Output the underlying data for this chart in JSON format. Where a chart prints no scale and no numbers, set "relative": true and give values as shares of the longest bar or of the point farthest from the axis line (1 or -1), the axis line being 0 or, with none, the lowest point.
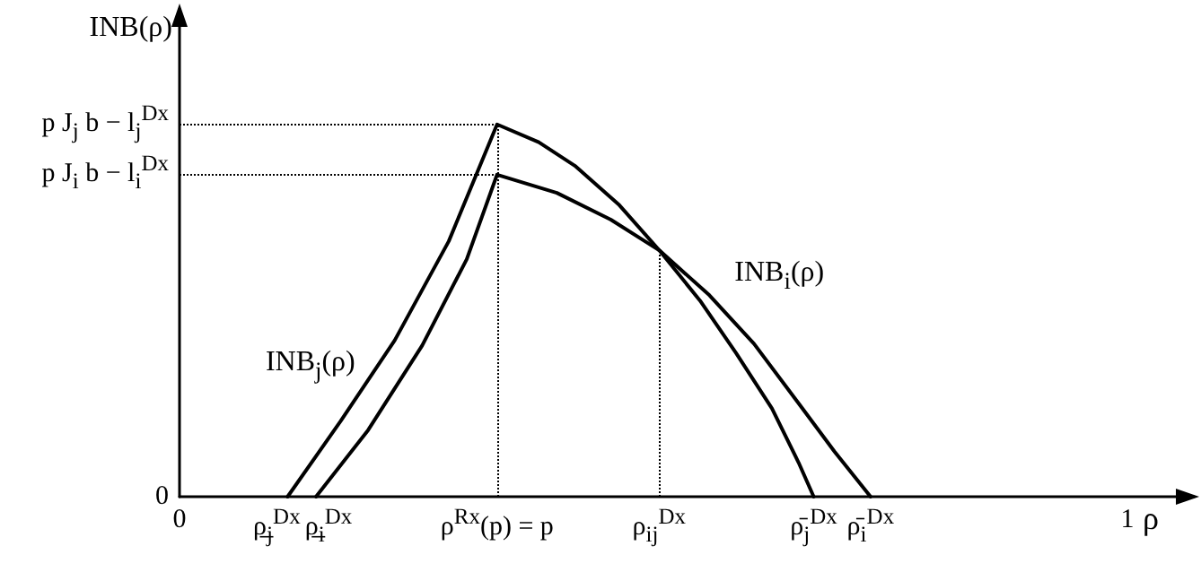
{
  "chart_data": {
    "type": "line",
    "relative": true,
    "xlabel": "ρ",
    "ylabel": "INB(ρ)",
    "xlim": [
      0,
      1.07
    ],
    "xticks": [
      0,
      {
        "value": 0.114,
        "label": "ρ̲$_{j}$$^{Dx}$"
      },
      {
        "value": 0.144,
        "label": "ρ̲$_{i}$$^{Dx}$"
      },
      {
        "value": 0.335,
        "label": "ρ$^{Rx}$(p) = p"
      },
      {
        "value": 0.506,
        "label": "ρ$_{ij}$$^{Dx}$"
      },
      {
        "value": 0.669,
        "label": "ρ̄$_{j}$$^{Dx}$"
      },
      {
        "value": 0.729,
        "label": "ρ̄$_{i}$$^{Dx}$"
      },
      1
    ],
    "series": [
      {
        "name": "INB$_{j}$(ρ)",
        "color": "#000000",
        "x": [
          0.114,
          0.17,
          0.227,
          0.284,
          0.335,
          0.379,
          0.417,
          0.464,
          0.506,
          0.549,
          0.587,
          0.625,
          0.653,
          0.669
        ],
        "values": [
          0,
          0.203,
          0.42,
          0.686,
          1,
          0.952,
          0.889,
          0.783,
          0.662,
          0.527,
          0.386,
          0.237,
          0.092,
          0
        ]
      },
      {
        "name": "INB$_{i}$(ρ)",
        "color": "#000000",
        "x": [
          0.144,
          0.199,
          0.256,
          0.303,
          0.335,
          0.398,
          0.455,
          0.506,
          0.559,
          0.606,
          0.653,
          0.691,
          0.729
        ],
        "values": [
          0,
          0.179,
          0.406,
          0.638,
          0.865,
          0.816,
          0.744,
          0.662,
          0.541,
          0.411,
          0.251,
          0.121,
          0
        ]
      }
    ],
    "ref_lines": [
      {
        "axis": "y",
        "value": 1,
        "label": "p J$_{j}$ b − l$_{j}$$^{Dx}$",
        "line_style": "dotted"
      },
      {
        "axis": "y",
        "value": 0.865,
        "label": "p J$_{i}$ b − l$_{i}$$^{Dx}$",
        "line_style": "dotted"
      },
      {
        "axis": "x",
        "value": 0.335,
        "line_style": "dotted"
      },
      {
        "axis": "x",
        "value": 0.506,
        "line_style": "dotted"
      }
    ],
    "annotations": [
      "0"
    ],
    "marker": "none",
    "line_style": "solid",
    "grid": false
  }
}
